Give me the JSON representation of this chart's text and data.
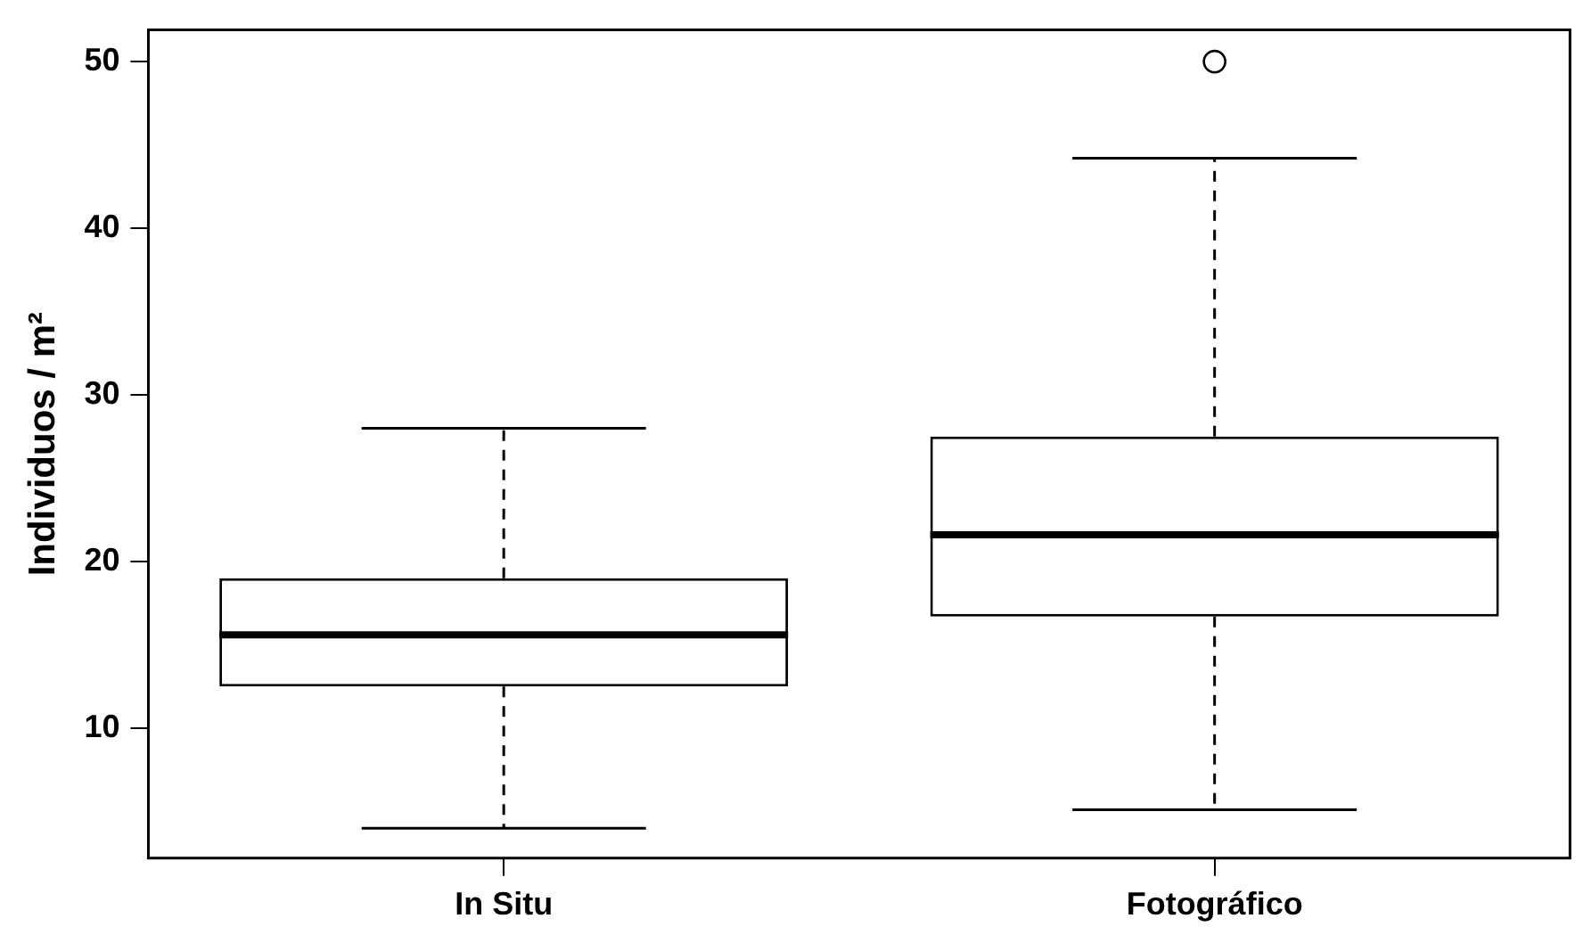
{
  "chart_data": {
    "type": "box",
    "ylabel": "Individuos / m²",
    "categories": [
      "In Situ",
      "Fotográfico"
    ],
    "boxes": [
      {
        "low": 4,
        "q1": 12.5,
        "median": 15.6,
        "q3": 19,
        "high": 28
      },
      {
        "low": 5.1,
        "q1": 16.7,
        "median": 21.6,
        "q3": 27.5,
        "high": 44.2,
        "outliers": [
          50
        ]
      }
    ],
    "ylim": [
      2.2,
      51.9
    ],
    "yticks": [
      10,
      20,
      30,
      40,
      50
    ],
    "grid": false,
    "legend": false
  }
}
